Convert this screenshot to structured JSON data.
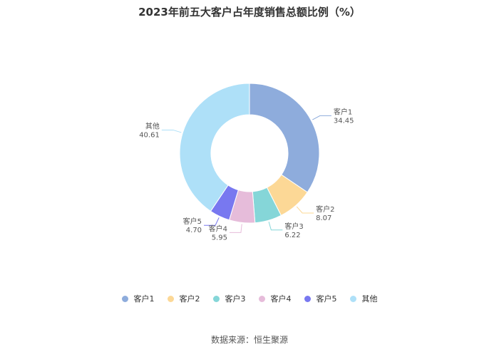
{
  "title": "2023年前五大客户占年度销售总额比例（%）",
  "source": "数据来源：恒生聚源",
  "chart_data": {
    "type": "pie",
    "title": "2023年前五大客户占年度销售总额比例（%）",
    "donut": true,
    "legend_position": "bottom",
    "series": [
      {
        "values": [
          {
            "name": "客户1",
            "value": 34.45,
            "value_text": "34.45",
            "color": "#8eacdc"
          },
          {
            "name": "客户2",
            "value": 8.07,
            "value_text": "8.07",
            "color": "#fcd896"
          },
          {
            "name": "客户3",
            "value": 6.22,
            "value_text": "6.22",
            "color": "#85d6d8"
          },
          {
            "name": "客户4",
            "value": 5.95,
            "value_text": "5.95",
            "color": "#e6bcda"
          },
          {
            "name": "客户5",
            "value": 4.7,
            "value_text": "4.70",
            "color": "#7878f0"
          },
          {
            "name": "其他",
            "value": 40.61,
            "value_text": "40.61",
            "color": "#aee0f8"
          }
        ]
      }
    ]
  }
}
